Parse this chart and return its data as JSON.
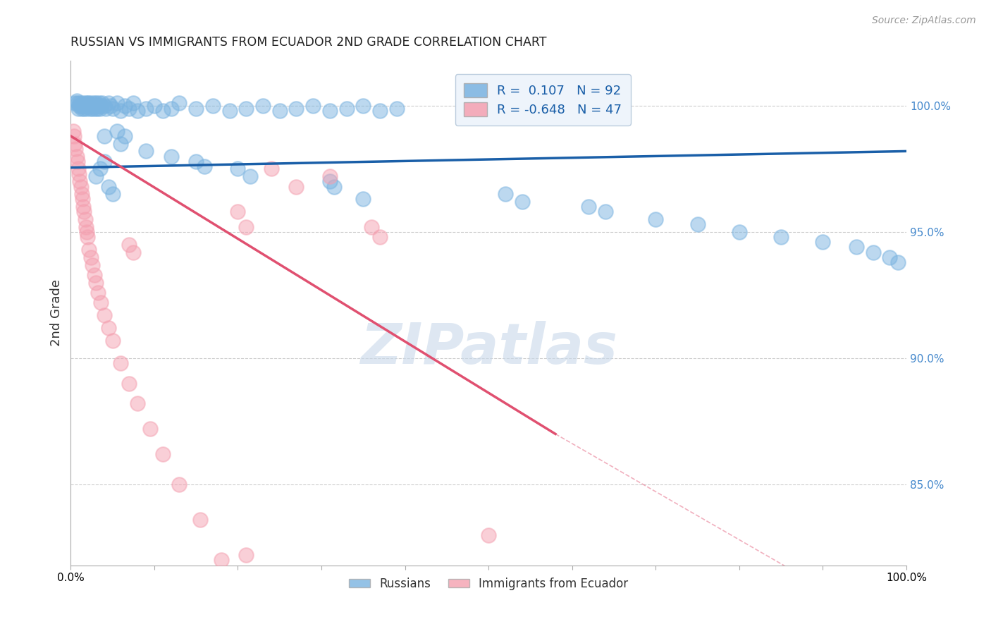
{
  "title": "RUSSIAN VS IMMIGRANTS FROM ECUADOR 2ND GRADE CORRELATION CHART",
  "source": "Source: ZipAtlas.com",
  "ylabel": "2nd Grade",
  "xlim": [
    0.0,
    1.0
  ],
  "ylim": [
    0.818,
    1.018
  ],
  "yticks": [
    0.85,
    0.9,
    0.95,
    1.0
  ],
  "ytick_labels": [
    "85.0%",
    "90.0%",
    "95.0%",
    "100.0%"
  ],
  "xticks": [
    0.0,
    0.1,
    0.2,
    0.3,
    0.4,
    0.5,
    0.6,
    0.7,
    0.8,
    0.9,
    1.0
  ],
  "xtick_labels": [
    "0.0%",
    "",
    "",
    "",
    "",
    "",
    "",
    "",
    "",
    "",
    "100.0%"
  ],
  "blue_R": 0.107,
  "blue_N": 92,
  "pink_R": -0.648,
  "pink_N": 47,
  "blue_color": "#7ab3e0",
  "pink_color": "#f4a0b0",
  "blue_line_color": "#1a5fa8",
  "pink_line_color": "#e05070",
  "blue_line": [
    0.0,
    1.0,
    0.9755,
    0.982
  ],
  "pink_solid": [
    0.0,
    0.58,
    0.988,
    0.87
  ],
  "pink_dash": [
    0.58,
    1.0,
    0.87,
    0.79
  ],
  "blue_scatter_x": [
    0.005,
    0.007,
    0.008,
    0.009,
    0.01,
    0.011,
    0.012,
    0.013,
    0.014,
    0.015,
    0.016,
    0.017,
    0.018,
    0.019,
    0.02,
    0.021,
    0.022,
    0.023,
    0.024,
    0.025,
    0.026,
    0.027,
    0.028,
    0.029,
    0.03,
    0.031,
    0.032,
    0.033,
    0.034,
    0.035,
    0.036,
    0.038,
    0.04,
    0.042,
    0.045,
    0.048,
    0.05,
    0.055,
    0.06,
    0.065,
    0.07,
    0.075,
    0.08,
    0.09,
    0.1,
    0.11,
    0.12,
    0.13,
    0.15,
    0.17,
    0.19,
    0.21,
    0.23,
    0.25,
    0.27,
    0.29,
    0.31,
    0.33,
    0.35,
    0.37,
    0.39,
    0.03,
    0.035,
    0.04,
    0.045,
    0.05,
    0.2,
    0.215,
    0.31,
    0.315,
    0.35,
    0.52,
    0.54,
    0.62,
    0.64,
    0.7,
    0.75,
    0.8,
    0.85,
    0.9,
    0.94,
    0.96,
    0.98,
    0.99,
    0.04,
    0.06,
    0.09,
    0.12,
    0.15,
    0.16,
    0.055,
    0.065
  ],
  "blue_scatter_y": [
    1.001,
    1.002,
    1.001,
    0.999,
    1.0,
    1.001,
    1.0,
    0.999,
    1.001,
    1.0,
    0.999,
    1.001,
    1.0,
    0.999,
    1.001,
    1.0,
    1.001,
    0.999,
    1.0,
    1.001,
    0.999,
    1.0,
    1.001,
    0.999,
    1.0,
    1.001,
    0.999,
    1.0,
    1.001,
    0.999,
    1.0,
    1.001,
    1.0,
    0.999,
    1.001,
    1.0,
    0.999,
    1.001,
    0.998,
    1.0,
    0.999,
    1.001,
    0.998,
    0.999,
    1.0,
    0.998,
    0.999,
    1.001,
    0.999,
    1.0,
    0.998,
    0.999,
    1.0,
    0.998,
    0.999,
    1.0,
    0.998,
    0.999,
    1.0,
    0.998,
    0.999,
    0.972,
    0.975,
    0.978,
    0.968,
    0.965,
    0.975,
    0.972,
    0.97,
    0.968,
    0.963,
    0.965,
    0.962,
    0.96,
    0.958,
    0.955,
    0.953,
    0.95,
    0.948,
    0.946,
    0.944,
    0.942,
    0.94,
    0.938,
    0.988,
    0.985,
    0.982,
    0.98,
    0.978,
    0.976,
    0.99,
    0.988
  ],
  "pink_scatter_x": [
    0.003,
    0.004,
    0.005,
    0.006,
    0.007,
    0.008,
    0.009,
    0.01,
    0.011,
    0.012,
    0.013,
    0.014,
    0.015,
    0.016,
    0.017,
    0.018,
    0.019,
    0.02,
    0.022,
    0.024,
    0.026,
    0.028,
    0.03,
    0.033,
    0.036,
    0.04,
    0.045,
    0.05,
    0.06,
    0.07,
    0.08,
    0.095,
    0.11,
    0.13,
    0.155,
    0.18,
    0.21,
    0.24,
    0.27,
    0.31,
    0.07,
    0.075,
    0.2,
    0.21,
    0.36,
    0.37,
    0.5
  ],
  "pink_scatter_y": [
    0.99,
    0.988,
    0.985,
    0.983,
    0.98,
    0.978,
    0.975,
    0.973,
    0.97,
    0.968,
    0.965,
    0.963,
    0.96,
    0.958,
    0.955,
    0.952,
    0.95,
    0.948,
    0.943,
    0.94,
    0.937,
    0.933,
    0.93,
    0.926,
    0.922,
    0.917,
    0.912,
    0.907,
    0.898,
    0.89,
    0.882,
    0.872,
    0.862,
    0.85,
    0.836,
    0.82,
    0.822,
    0.975,
    0.968,
    0.972,
    0.945,
    0.942,
    0.958,
    0.952,
    0.952,
    0.948,
    0.83
  ],
  "watermark_text": "ZIPatlas",
  "watermark_color": "#c8d8ea",
  "watermark_alpha": 0.6
}
